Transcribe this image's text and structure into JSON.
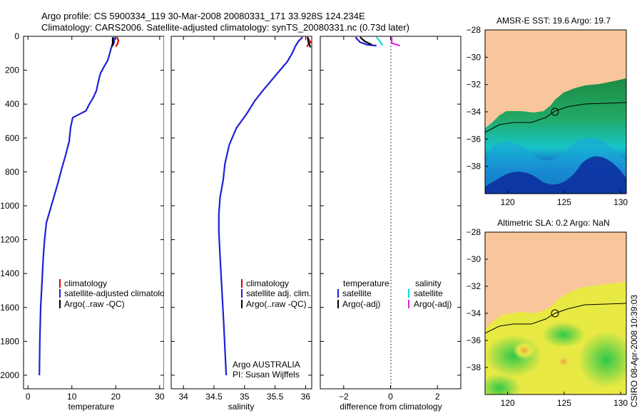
{
  "header": {
    "line1": "Argo profile: CS 5900334_119 30-Mar-2008 20080331_171 33.928S 124.234E",
    "line2": "Climatology: CARS2006. Satellite-adjusted climatology: synTS_20080331.nc (0.73d later)"
  },
  "credit": "CSIRO 08-Apr-2008 10:39:03",
  "chart_data": [
    {
      "id": "temperature",
      "type": "line",
      "xlabel": "temperature",
      "xlim": [
        -1,
        31
      ],
      "xticks": [
        0,
        10,
        20,
        30
      ],
      "ylim": [
        2080,
        0
      ],
      "yticks": [
        0,
        200,
        400,
        600,
        800,
        1000,
        1200,
        1400,
        1600,
        1800,
        2000
      ],
      "legend": [
        "climatology",
        "satellite-adjusted climatology",
        "Argo(..raw -QC)"
      ],
      "series": [
        {
          "name": "climatology",
          "color": "#e00000",
          "points": [
            [
              20.3,
              5
            ],
            [
              20.6,
              25
            ],
            [
              20.4,
              45
            ],
            [
              20.0,
              60
            ]
          ]
        },
        {
          "name": "satellite-adjusted climatology",
          "color": "#1f1fd6",
          "points": [
            [
              19.7,
              5
            ],
            [
              19.6,
              40
            ],
            [
              19.0,
              65
            ],
            [
              18.8,
              85
            ],
            [
              18.2,
              140
            ],
            [
              17.1,
              190
            ],
            [
              16.5,
              220
            ],
            [
              16.0,
              270
            ],
            [
              15.6,
              320
            ],
            [
              14.9,
              360
            ],
            [
              14.0,
              400
            ],
            [
              13.2,
              440
            ],
            [
              10.2,
              480
            ],
            [
              9.7,
              540
            ],
            [
              9.4,
              620
            ],
            [
              8.6,
              700
            ],
            [
              7.7,
              780
            ],
            [
              6.9,
              860
            ],
            [
              6.0,
              940
            ],
            [
              5.1,
              1020
            ],
            [
              4.2,
              1100
            ],
            [
              3.8,
              1200
            ],
            [
              3.5,
              1300
            ],
            [
              3.2,
              1450
            ],
            [
              2.9,
              1600
            ],
            [
              2.7,
              1800
            ],
            [
              2.6,
              2000
            ]
          ]
        },
        {
          "name": "Argo(..raw -QC)",
          "color": "#000000",
          "points": [
            [
              19.3,
              5
            ],
            [
              19.3,
              40
            ],
            [
              19.1,
              60
            ]
          ]
        }
      ],
      "annotations": []
    },
    {
      "id": "salinity",
      "type": "line",
      "xlabel": "salinity",
      "xlim": [
        33.8,
        36.1
      ],
      "xticks": [
        34,
        34.5,
        35,
        35.5,
        36
      ],
      "xticklabels": [
        "34",
        "34.5",
        "35",
        "35.5",
        "36"
      ],
      "ylim": [
        2080,
        0
      ],
      "legend": [
        "climatology",
        "satellite adj. clim.",
        "Argo(..raw -QC)"
      ],
      "series": [
        {
          "name": "climatology",
          "color": "#e00000",
          "points": [
            [
              36.03,
              5
            ],
            [
              36.08,
              35
            ],
            [
              36.02,
              60
            ]
          ]
        },
        {
          "name": "satellite adj. clim.",
          "color": "#1f1fd6",
          "points": [
            [
              35.95,
              5
            ],
            [
              35.88,
              30
            ],
            [
              35.83,
              60
            ],
            [
              35.78,
              100
            ],
            [
              35.7,
              150
            ],
            [
              35.58,
              200
            ],
            [
              35.44,
              260
            ],
            [
              35.3,
              320
            ],
            [
              35.17,
              380
            ],
            [
              35.03,
              460
            ],
            [
              34.87,
              540
            ],
            [
              34.75,
              640
            ],
            [
              34.68,
              750
            ],
            [
              34.65,
              850
            ],
            [
              34.6,
              950
            ],
            [
              34.58,
              1050
            ],
            [
              34.58,
              1150
            ],
            [
              34.6,
              1300
            ],
            [
              34.63,
              1500
            ],
            [
              34.66,
              1700
            ],
            [
              34.7,
              2000
            ]
          ]
        },
        {
          "name": "Argo(..raw -QC)",
          "color": "#000000",
          "points": [
            [
              36.03,
              5
            ],
            [
              36.05,
              40
            ],
            [
              36.08,
              65
            ]
          ]
        }
      ],
      "annotations": [
        "Argo AUSTRALIA",
        "PI: Susan Wijffels"
      ]
    },
    {
      "id": "difference",
      "type": "line",
      "xlabel": "difference from climatology",
      "xlim": [
        -3,
        3
      ],
      "xticks": [
        -2,
        0,
        2
      ],
      "ylim": [
        2080,
        0
      ],
      "legend_left_title": "temperature",
      "legend_right_title": "salinity",
      "legend": [
        "satellite",
        "Argo(-adj)",
        "satellite",
        "Argo(-adj)"
      ],
      "series": [
        {
          "name": "temperature satellite",
          "color": "#1f1fd6",
          "points": [
            [
              -1.5,
              5
            ],
            [
              -1.3,
              35
            ],
            [
              -1.0,
              50
            ],
            [
              -0.6,
              55
            ]
          ]
        },
        {
          "name": "temperature Argo(-adj)",
          "color": "#000000",
          "points": [
            [
              -1.3,
              5
            ],
            [
              -1.1,
              30
            ],
            [
              -0.8,
              50
            ]
          ]
        },
        {
          "name": "salinity satellite",
          "color": "#00dede",
          "points": [
            [
              -0.6,
              5
            ],
            [
              -0.45,
              30
            ],
            [
              -0.35,
              55
            ]
          ]
        },
        {
          "name": "salinity Argo(-adj)",
          "color": "#e020e0",
          "points": [
            [
              0.05,
              5
            ],
            [
              0.05,
              40
            ],
            [
              0.4,
              55
            ]
          ]
        }
      ]
    },
    {
      "id": "sst_map",
      "type": "heatmap",
      "title": "AMSR-E SST: 19.6 Argo: 19.7",
      "xlim": [
        118,
        130.5
      ],
      "xticks": [
        120,
        125,
        130
      ],
      "ylim": [
        -40,
        -28
      ],
      "yticks": [
        -28,
        -30,
        -32,
        -34,
        -36,
        -38
      ],
      "marker": {
        "lon": 124.234,
        "lat": -33.928
      }
    },
    {
      "id": "sla_map",
      "type": "heatmap",
      "title": "Altimetric SLA: 0.2 Argo: NaN",
      "xlim": [
        118,
        130.5
      ],
      "xticks": [
        120,
        125,
        130
      ],
      "ylim": [
        -40,
        -28
      ],
      "yticks": [
        -28,
        -30,
        -32,
        -34,
        -36,
        -38
      ],
      "marker": {
        "lon": 124.234,
        "lat": -33.928
      }
    }
  ],
  "colors": {
    "land": "#f9c69b",
    "sla_bg": "#ecec3c"
  }
}
